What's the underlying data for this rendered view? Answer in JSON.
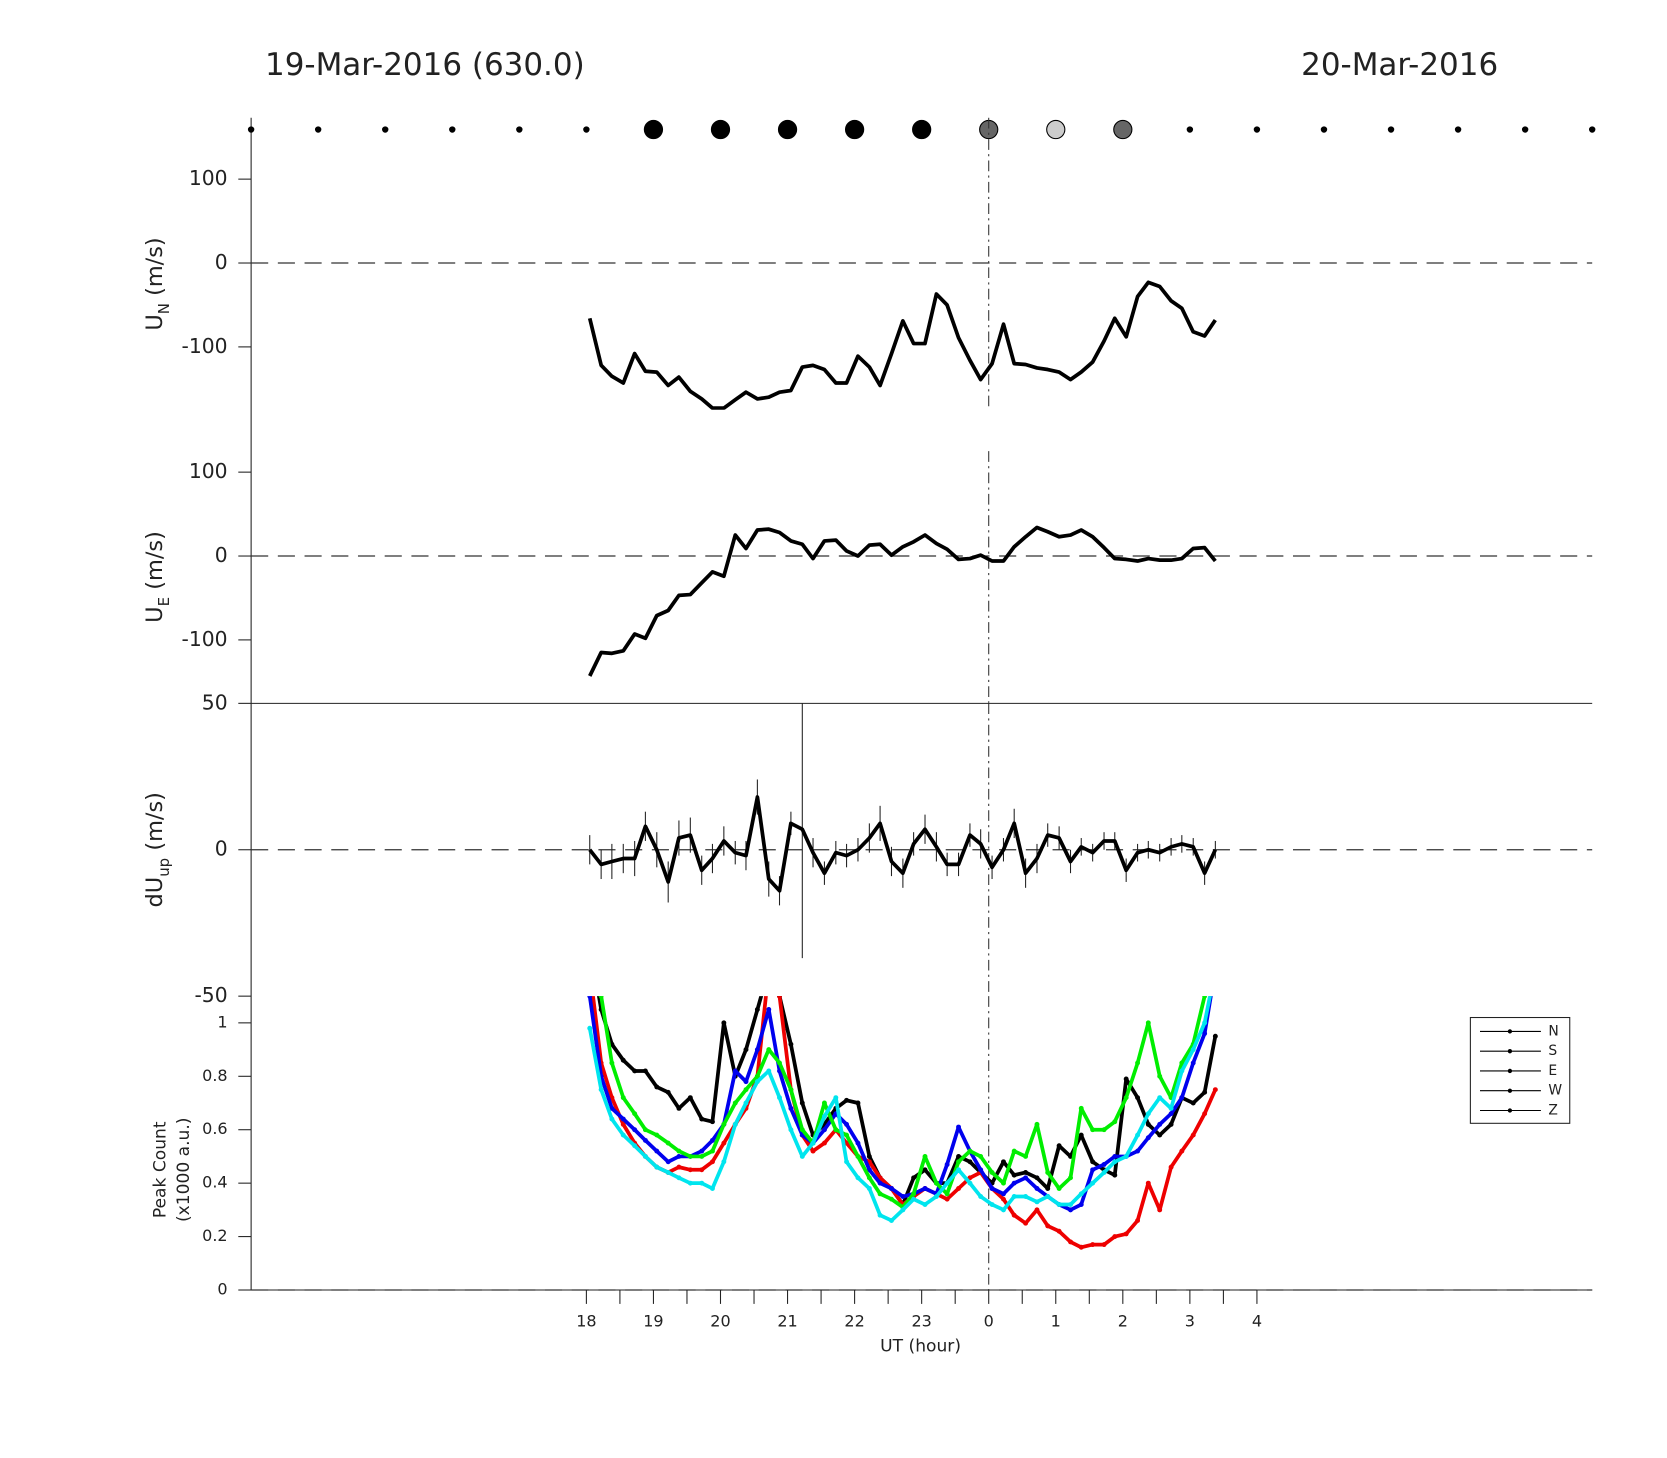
{
  "chart_data": [
    {
      "type": "scatter",
      "title": "19-Mar-2016 (630.0)",
      "title_right": "20-Mar-2016",
      "xlim": [
        13,
        33
      ],
      "x": [
        13,
        14,
        15,
        16,
        17,
        18,
        19,
        20,
        21,
        22,
        23,
        24,
        25,
        26,
        27,
        28,
        29,
        30,
        31,
        32,
        33
      ],
      "marker_sizes": [
        2.5,
        2.5,
        2.5,
        2.5,
        2.5,
        2.5,
        8.5,
        8.5,
        8.5,
        8.5,
        8.5,
        8.5,
        8.5,
        8.5,
        2.5,
        2.5,
        2.5,
        2.5,
        2.5,
        2.5,
        2.5
      ],
      "marker_colors": [
        "#000",
        "#000",
        "#000",
        "#000",
        "#000",
        "#000",
        "#000",
        "#000",
        "#000",
        "#000",
        "#000",
        "#666",
        "#ccc",
        "#666",
        "#000",
        "#000",
        "#000",
        "#000",
        "#000",
        "#000",
        "#000"
      ]
    },
    {
      "type": "line",
      "ylabel": {
        "main": "U",
        "sub": "N",
        "suffix": " (m/s)"
      },
      "xlim": [
        13,
        33
      ],
      "ylim": [
        -175,
        125
      ],
      "yticks": [
        -100,
        0,
        100
      ],
      "zero_line": true,
      "vline": 24,
      "color": "#000",
      "x": [
        18.05,
        18.22,
        18.38,
        18.55,
        18.72,
        18.88,
        19.05,
        19.22,
        19.38,
        19.55,
        19.72,
        19.88,
        20.05,
        20.22,
        20.38,
        20.55,
        20.72,
        20.88,
        21.05,
        21.22,
        21.38,
        21.55,
        21.72,
        21.88,
        22.05,
        22.22,
        22.38,
        22.55,
        22.72,
        22.88,
        23.05,
        23.22,
        23.38,
        23.55,
        23.72,
        23.88,
        24.05,
        24.22,
        24.38,
        24.55,
        24.72,
        24.88,
        25.05,
        25.22,
        25.38,
        25.55,
        25.72,
        25.88,
        26.05,
        26.22,
        26.38,
        26.55,
        26.72,
        26.88,
        27.05,
        27.22,
        27.38
      ],
      "values": [
        -66,
        -122,
        -135,
        -143,
        -108,
        -129,
        -130,
        -146,
        -136,
        -153,
        -162,
        -173,
        -173,
        -163,
        -154,
        -162,
        -160,
        -154,
        -152,
        -124,
        -122,
        -127,
        -143,
        -143,
        -111,
        -124,
        -146,
        -108,
        -69,
        -96,
        -96,
        -37,
        -50,
        -89,
        -116,
        -139,
        -120,
        -73,
        -120,
        -121,
        -125,
        -127,
        -130,
        -139,
        -130,
        -118,
        -93,
        -66,
        -88,
        -40,
        -23,
        -28,
        -45,
        -54,
        -82,
        -87,
        -68
      ]
    },
    {
      "type": "line",
      "ylabel": {
        "main": "U",
        "sub": "E",
        "suffix": " (m/s)"
      },
      "xlim": [
        13,
        33
      ],
      "ylim": [
        -175,
        125
      ],
      "yticks": [
        -100,
        0,
        100
      ],
      "zero_line": true,
      "vline": 24,
      "color": "#000",
      "x": [
        18.05,
        18.22,
        18.38,
        18.55,
        18.72,
        18.88,
        19.05,
        19.22,
        19.38,
        19.55,
        19.72,
        19.88,
        20.05,
        20.22,
        20.38,
        20.55,
        20.72,
        20.88,
        21.05,
        21.22,
        21.38,
        21.55,
        21.72,
        21.88,
        22.05,
        22.22,
        22.38,
        22.55,
        22.72,
        22.88,
        23.05,
        23.22,
        23.38,
        23.55,
        23.72,
        23.88,
        24.05,
        24.22,
        24.38,
        24.55,
        24.72,
        24.88,
        25.05,
        25.22,
        25.38,
        25.55,
        25.72,
        25.88,
        26.05,
        26.22,
        26.38,
        26.55,
        26.72,
        26.88,
        27.05,
        27.22,
        27.38
      ],
      "values": [
        -143,
        -115,
        -116,
        -113,
        -93,
        -98,
        -71,
        -65,
        -47,
        -46,
        -32,
        -19,
        -24,
        25,
        9,
        31,
        32,
        28,
        18,
        14,
        -3,
        18,
        19,
        6,
        0,
        13,
        14,
        1,
        11,
        17,
        25,
        15,
        8,
        -4,
        -3,
        1,
        -6,
        -6,
        11,
        23,
        34,
        29,
        23,
        25,
        31,
        23,
        10,
        -3,
        -4,
        -6,
        -3,
        -5,
        -5,
        -3,
        9,
        10,
        -6
      ]
    },
    {
      "type": "line",
      "ylabel": {
        "main": "dU",
        "sub": "up",
        "suffix": " (m/s)"
      },
      "xlim": [
        13,
        33
      ],
      "ylim": [
        -50,
        50
      ],
      "yticks": [
        -50,
        0,
        50
      ],
      "zero_line": true,
      "vline": 24,
      "color": "#000",
      "x": [
        18.05,
        18.22,
        18.38,
        18.55,
        18.72,
        18.88,
        19.05,
        19.22,
        19.38,
        19.55,
        19.72,
        19.88,
        20.05,
        20.22,
        20.38,
        20.55,
        20.72,
        20.88,
        21.05,
        21.22,
        21.38,
        21.55,
        21.72,
        21.88,
        22.05,
        22.22,
        22.38,
        22.55,
        22.72,
        22.88,
        23.05,
        23.22,
        23.38,
        23.55,
        23.72,
        23.88,
        24.05,
        24.22,
        24.38,
        24.55,
        24.72,
        24.88,
        25.05,
        25.22,
        25.38,
        25.55,
        25.72,
        25.88,
        26.05,
        26.22,
        26.38,
        26.55,
        26.72,
        26.88,
        27.05,
        27.22,
        27.38
      ],
      "values": [
        0,
        -5,
        -4,
        -3,
        -3,
        8,
        0,
        -11,
        4,
        5,
        -7,
        -3,
        3,
        -1,
        -2,
        18,
        -10,
        -14,
        9,
        7,
        -1,
        -8,
        -1,
        -2,
        0,
        4,
        9,
        -4,
        -8,
        2,
        7,
        1,
        -5,
        -5,
        5,
        2,
        -6,
        0,
        9,
        -8,
        -3,
        5,
        4,
        -4,
        1,
        -1,
        3,
        3,
        -7,
        -1,
        0,
        -1,
        1,
        2,
        1,
        -8,
        0
      ],
      "errors": [
        5,
        5,
        6,
        5,
        6,
        5,
        6,
        7,
        6,
        6,
        5,
        5,
        5,
        4,
        5,
        6,
        6,
        5,
        4,
        44,
        5,
        4,
        4,
        4,
        4,
        5,
        6,
        5,
        5,
        4,
        5,
        5,
        4,
        4,
        4,
        5,
        4,
        4,
        5,
        5,
        5,
        4,
        4,
        4,
        3,
        3,
        3,
        3,
        4,
        3,
        3,
        3,
        3,
        3,
        3,
        4,
        3
      ]
    },
    {
      "type": "line",
      "ylabel": [
        "Peak Count",
        "(x1000 a.u.)"
      ],
      "xlabel": "UT (hour)",
      "xlim": [
        13,
        33
      ],
      "ylim": [
        0,
        1.1
      ],
      "yticks": [
        0,
        0.2,
        0.4,
        0.6,
        0.8,
        1
      ],
      "zero_line": true,
      "vline": 24,
      "xticks": [
        18,
        19,
        20,
        21,
        22,
        23,
        {
          "value": 24,
          "label": "0"
        },
        {
          "value": 25,
          "label": "1"
        },
        {
          "value": 26,
          "label": "2"
        },
        {
          "value": 27,
          "label": "3"
        },
        {
          "value": 28,
          "label": "4"
        }
      ],
      "xminor": [
        18.5,
        19.5,
        20.5,
        21.5,
        22.5,
        23.5,
        24.5,
        25.5,
        26.5,
        27.5
      ],
      "x": [
        18.05,
        18.22,
        18.38,
        18.55,
        18.72,
        18.88,
        19.05,
        19.22,
        19.38,
        19.55,
        19.72,
        19.88,
        20.05,
        20.22,
        20.38,
        20.55,
        20.72,
        20.88,
        21.05,
        21.22,
        21.38,
        21.55,
        21.72,
        21.88,
        22.05,
        22.22,
        22.38,
        22.55,
        22.72,
        22.88,
        23.05,
        23.22,
        23.38,
        23.55,
        23.72,
        23.88,
        24.05,
        24.22,
        24.38,
        24.55,
        24.72,
        24.88,
        25.05,
        25.22,
        25.38,
        25.55,
        25.72,
        25.88,
        26.05,
        26.22,
        26.38,
        26.55,
        26.72,
        26.88,
        27.05,
        27.22,
        27.38
      ],
      "series": [
        {
          "name": "N",
          "color": "#000000",
          "values": [
            1.3,
            1.05,
            0.92,
            0.86,
            0.82,
            0.82,
            0.76,
            0.74,
            0.68,
            0.72,
            0.64,
            0.63,
            1.0,
            0.8,
            0.9,
            1.05,
            1.2,
            1.1,
            0.92,
            0.7,
            0.58,
            0.62,
            0.68,
            0.71,
            0.7,
            0.5,
            0.42,
            0.38,
            0.32,
            0.42,
            0.45,
            0.4,
            0.4,
            0.5,
            0.48,
            0.44,
            0.4,
            0.48,
            0.43,
            0.44,
            0.42,
            0.38,
            0.54,
            0.5,
            0.58,
            0.48,
            0.45,
            0.43,
            0.79,
            0.72,
            0.62,
            0.58,
            0.62,
            0.72,
            0.7,
            0.74,
            0.95
          ]
        },
        {
          "name": "S",
          "color": "#ee0000",
          "values": [
            1.2,
            0.85,
            0.72,
            0.62,
            0.55,
            0.5,
            0.46,
            0.44,
            0.46,
            0.45,
            0.45,
            0.48,
            0.55,
            0.62,
            0.68,
            0.8,
            1.2,
            1.1,
            0.75,
            0.58,
            0.52,
            0.55,
            0.6,
            0.55,
            0.5,
            0.48,
            0.42,
            0.38,
            0.32,
            0.35,
            0.38,
            0.36,
            0.34,
            0.38,
            0.42,
            0.44,
            0.38,
            0.34,
            0.28,
            0.25,
            0.3,
            0.24,
            0.22,
            0.18,
            0.16,
            0.17,
            0.17,
            0.2,
            0.21,
            0.26,
            0.4,
            0.3,
            0.46,
            0.52,
            0.58,
            0.66,
            0.75
          ]
        },
        {
          "name": "E",
          "color": "#0000ee",
          "values": [
            1.1,
            0.8,
            0.68,
            0.64,
            0.6,
            0.56,
            0.52,
            0.48,
            0.5,
            0.5,
            0.52,
            0.56,
            0.62,
            0.82,
            0.78,
            0.9,
            1.05,
            0.82,
            0.68,
            0.58,
            0.55,
            0.6,
            0.66,
            0.62,
            0.55,
            0.45,
            0.4,
            0.38,
            0.35,
            0.36,
            0.38,
            0.36,
            0.47,
            0.61,
            0.52,
            0.45,
            0.38,
            0.36,
            0.4,
            0.42,
            0.38,
            0.35,
            0.32,
            0.3,
            0.32,
            0.45,
            0.47,
            0.5,
            0.5,
            0.52,
            0.57,
            0.62,
            0.66,
            0.72,
            0.85,
            0.96,
            1.2
          ]
        },
        {
          "name": "W",
          "color": "#00ee00",
          "values": [
            1.3,
            1.1,
            0.85,
            0.72,
            0.66,
            0.6,
            0.58,
            0.55,
            0.52,
            0.5,
            0.5,
            0.52,
            0.62,
            0.7,
            0.75,
            0.8,
            0.9,
            0.85,
            0.75,
            0.6,
            0.55,
            0.7,
            0.6,
            0.58,
            0.5,
            0.42,
            0.36,
            0.34,
            0.31,
            0.36,
            0.5,
            0.4,
            0.36,
            0.48,
            0.52,
            0.5,
            0.44,
            0.4,
            0.52,
            0.5,
            0.62,
            0.44,
            0.38,
            0.42,
            0.68,
            0.6,
            0.6,
            0.63,
            0.72,
            0.85,
            1.0,
            0.8,
            0.72,
            0.85,
            0.92,
            1.1,
            1.3
          ]
        },
        {
          "name": "Z",
          "color": "#00e5ee",
          "values": [
            0.98,
            0.75,
            0.64,
            0.58,
            0.54,
            0.5,
            0.46,
            0.44,
            0.42,
            0.4,
            0.4,
            0.38,
            0.48,
            0.62,
            0.7,
            0.78,
            0.82,
            0.72,
            0.6,
            0.5,
            0.55,
            0.65,
            0.72,
            0.48,
            0.42,
            0.38,
            0.28,
            0.26,
            0.3,
            0.34,
            0.32,
            0.35,
            0.4,
            0.45,
            0.4,
            0.35,
            0.32,
            0.3,
            0.35,
            0.35,
            0.33,
            0.35,
            0.32,
            0.32,
            0.36,
            0.4,
            0.44,
            0.48,
            0.5,
            0.58,
            0.66,
            0.72,
            0.68,
            0.82,
            0.9,
            1.0,
            1.2
          ]
        }
      ]
    }
  ]
}
